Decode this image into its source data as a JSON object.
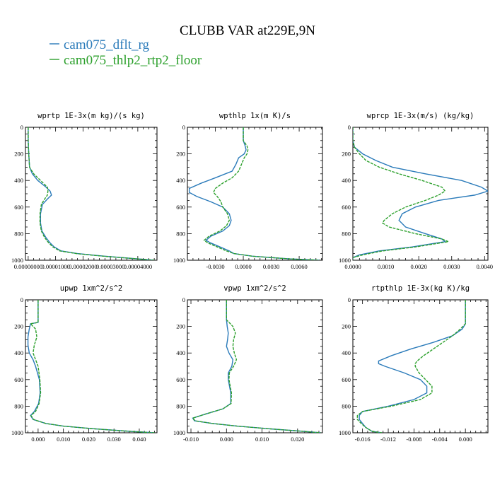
{
  "title": "CLUBB VAR at229E,9N",
  "legend": [
    {
      "label": "cam075_dflt_rg",
      "color": "#2b7bba",
      "dash": false
    },
    {
      "label": "cam075_thlp2_rtp2_floor",
      "color": "#2ca02c",
      "dash": true
    }
  ],
  "chart_data": [
    {
      "type": "line",
      "title": "wprtp   1E-3x(m kg)/(s kg)",
      "xlim": [
        -1e-06,
        4.7e-05
      ],
      "ylim": [
        1000,
        0
      ],
      "xticks": [
        0.0,
        1e-05,
        2e-05,
        3e-05,
        4e-05
      ],
      "xtick_labels": [
        "0.00000000",
        "0.00001000",
        "0.00002000",
        "0.00003000",
        "0.00004000"
      ],
      "yticks": [
        0,
        200,
        400,
        600,
        800,
        1000
      ],
      "ytick_labels": [
        "0",
        "200",
        "400",
        "600",
        "800",
        "1000"
      ],
      "series": [
        {
          "name": "cam075_dflt_rg",
          "p": [
            0,
            100,
            200,
            300,
            350,
            400,
            450,
            480,
            510,
            540,
            580,
            650,
            720,
            780,
            830,
            870,
            900,
            930,
            950,
            970,
            990,
            1000
          ],
          "x": [
            0.0,
            0.0,
            2e-07,
            5e-07,
            1.5e-06,
            3.5e-06,
            6.5e-06,
            8e-06,
            8.5e-06,
            7e-06,
            5.2e-06,
            4.5e-06,
            4.5e-06,
            5e-06,
            6.5e-06,
            8e-06,
            9.5e-06,
            1.2e-05,
            1.8e-05,
            2.8e-05,
            4e-05,
            4.6e-05
          ]
        },
        {
          "name": "cam075_thlp2_rtp2_floor",
          "p": [
            0,
            100,
            200,
            300,
            350,
            400,
            450,
            480,
            510,
            540,
            580,
            650,
            720,
            780,
            830,
            870,
            900,
            930,
            950,
            970,
            990,
            1000
          ],
          "x": [
            0.0,
            0.0,
            2e-07,
            5e-07,
            2e-06,
            4.5e-06,
            7e-06,
            7.2e-06,
            7e-06,
            6e-06,
            4.8e-06,
            4.3e-06,
            4.3e-06,
            4.8e-06,
            6e-06,
            7.5e-06,
            9e-06,
            1.15e-05,
            1.75e-05,
            2.75e-05,
            4e-05,
            4.6e-05
          ]
        }
      ]
    },
    {
      "type": "line",
      "title": "wpthlp   1x(m K)/s",
      "xlim": [
        -0.006,
        0.0085
      ],
      "ylim": [
        1000,
        0
      ],
      "xticks": [
        -0.003,
        0.0,
        0.003,
        0.006
      ],
      "xtick_labels": [
        "-0.0030",
        "0.0000",
        "0.0030",
        "0.0060"
      ],
      "yticks": [
        0,
        200,
        400,
        600,
        800,
        1000
      ],
      "ytick_labels": [
        "0",
        "200",
        "400",
        "600",
        "800",
        "1000"
      ],
      "series": [
        {
          "name": "cam075_dflt_rg",
          "p": [
            0,
            100,
            140,
            170,
            200,
            230,
            280,
            330,
            380,
            420,
            460,
            490,
            520,
            560,
            600,
            650,
            700,
            740,
            780,
            820,
            850,
            870,
            900,
            930,
            950,
            970,
            990,
            1000
          ],
          "x": [
            0.0,
            0.0,
            0.0002,
            0.0003,
            0.0001,
            -0.0005,
            -0.0008,
            -0.0012,
            -0.003,
            -0.0045,
            -0.0058,
            -0.0058,
            -0.005,
            -0.0035,
            -0.0022,
            -0.0015,
            -0.0013,
            -0.0015,
            -0.0022,
            -0.0035,
            -0.004,
            -0.0035,
            -0.0025,
            -0.0015,
            -0.001,
            0.001,
            0.005,
            0.0082
          ]
        },
        {
          "name": "cam075_thlp2_rtp2_floor",
          "p": [
            0,
            100,
            140,
            170,
            200,
            230,
            280,
            330,
            380,
            420,
            460,
            490,
            520,
            560,
            600,
            650,
            700,
            740,
            780,
            820,
            850,
            870,
            900,
            930,
            950,
            970,
            990,
            1000
          ],
          "x": [
            0.0,
            0.0,
            0.0004,
            0.0005,
            0.0004,
            0.0001,
            -0.0002,
            -0.0005,
            -0.0012,
            -0.0022,
            -0.003,
            -0.0032,
            -0.0028,
            -0.0024,
            -0.0022,
            -0.0017,
            -0.0015,
            -0.0018,
            -0.0025,
            -0.0037,
            -0.0042,
            -0.0038,
            -0.0028,
            -0.0018,
            -0.001,
            0.001,
            0.005,
            0.0082
          ]
        }
      ]
    },
    {
      "type": "line",
      "title": "wprcp   1E-3x(m/s) (kg/kg)",
      "xlim": [
        0.0,
        0.0041
      ],
      "ylim": [
        1000,
        0
      ],
      "xticks": [
        0.0,
        0.001,
        0.002,
        0.003,
        0.004
      ],
      "xtick_labels": [
        "0.0000",
        "0.0010",
        "0.0020",
        "0.0030",
        "0.0040"
      ],
      "yticks": [
        0,
        200,
        400,
        600,
        800,
        1000
      ],
      "ytick_labels": [
        "0",
        "200",
        "400",
        "600",
        "800",
        "1000"
      ],
      "series": [
        {
          "name": "cam075_dflt_rg",
          "p": [
            0,
            100,
            150,
            200,
            250,
            300,
            350,
            400,
            450,
            480,
            510,
            550,
            600,
            650,
            700,
            750,
            800,
            840,
            860,
            900,
            930,
            960,
            980,
            1000
          ],
          "x": [
            0.0,
            0.0,
            5e-05,
            0.0003,
            0.0007,
            0.0012,
            0.0022,
            0.0033,
            0.0039,
            0.0041,
            0.0037,
            0.0026,
            0.0019,
            0.0015,
            0.0014,
            0.0016,
            0.0022,
            0.0027,
            0.0028,
            0.0018,
            0.0008,
            0.0002,
            0.0,
            0.0
          ]
        },
        {
          "name": "cam075_thlp2_rtp2_floor",
          "p": [
            0,
            100,
            150,
            200,
            250,
            300,
            350,
            400,
            450,
            480,
            510,
            550,
            600,
            650,
            700,
            720,
            750,
            800,
            840,
            860,
            900,
            930,
            960,
            980,
            1000
          ],
          "x": [
            0.0,
            0.0,
            5e-05,
            0.0002,
            0.0004,
            0.0008,
            0.0014,
            0.0021,
            0.0027,
            0.0028,
            0.0026,
            0.0022,
            0.0016,
            0.0012,
            0.00095,
            0.0009,
            0.0011,
            0.0019,
            0.0027,
            0.0029,
            0.0019,
            0.0009,
            0.0003,
            0.0,
            0.0
          ]
        }
      ]
    },
    {
      "type": "line",
      "title": "upwp   1xm^2/s^2",
      "xlim": [
        -0.005,
        0.047
      ],
      "ylim": [
        1000,
        0
      ],
      "xticks": [
        0.0,
        0.01,
        0.02,
        0.03,
        0.04
      ],
      "xtick_labels": [
        "0.000",
        "0.010",
        "0.020",
        "0.030",
        "0.040"
      ],
      "yticks": [
        0,
        200,
        400,
        600,
        800,
        1000
      ],
      "ytick_labels": [
        "0",
        "200",
        "400",
        "600",
        "800",
        "1000"
      ],
      "series": [
        {
          "name": "cam075_dflt_rg",
          "p": [
            0,
            100,
            170,
            180,
            220,
            280,
            340,
            400,
            450,
            500,
            600,
            700,
            780,
            840,
            870,
            900,
            930,
            950,
            970,
            990,
            1000
          ],
          "x": [
            0.0,
            0.0,
            0.0,
            -0.003,
            -0.0035,
            -0.004,
            -0.004,
            -0.0035,
            -0.002,
            -0.001,
            0.0005,
            0.0008,
            0.0002,
            -0.0015,
            -0.003,
            -0.002,
            0.003,
            0.01,
            0.022,
            0.037,
            0.046
          ]
        },
        {
          "name": "cam075_thlp2_rtp2_floor",
          "p": [
            0,
            100,
            170,
            180,
            220,
            280,
            340,
            400,
            450,
            500,
            600,
            700,
            780,
            840,
            870,
            900,
            930,
            950,
            970,
            990,
            1000
          ],
          "x": [
            0.0,
            0.0,
            0.0,
            -0.003,
            -0.001,
            -0.0005,
            -0.0015,
            -0.002,
            -0.001,
            0.0,
            0.0007,
            0.001,
            0.0004,
            -0.001,
            -0.0028,
            -0.0018,
            0.003,
            0.01,
            0.022,
            0.037,
            0.046
          ]
        }
      ]
    },
    {
      "type": "line",
      "title": "vpwp   1xm^2/s^2",
      "xlim": [
        -0.011,
        0.027
      ],
      "ylim": [
        1000,
        0
      ],
      "xticks": [
        -0.01,
        0.0,
        0.01,
        0.02
      ],
      "xtick_labels": [
        "-0.010",
        "0.000",
        "0.010",
        "0.020"
      ],
      "yticks": [
        0,
        200,
        400,
        600,
        800,
        1000
      ],
      "ytick_labels": [
        "0",
        "200",
        "400",
        "600",
        "800",
        "1000"
      ],
      "series": [
        {
          "name": "cam075_dflt_rg",
          "p": [
            0,
            100,
            150,
            200,
            250,
            300,
            350,
            400,
            450,
            500,
            550,
            600,
            700,
            780,
            820,
            860,
            890,
            910,
            930,
            950,
            970,
            990,
            1000
          ],
          "x": [
            0.0,
            0.0,
            0.0,
            0.0002,
            0.0005,
            0.0003,
            0.0,
            0.0007,
            0.0018,
            0.0015,
            0.0005,
            0.0005,
            0.0012,
            0.0012,
            -0.001,
            -0.006,
            -0.0095,
            -0.009,
            -0.004,
            0.003,
            0.012,
            0.022,
            0.0265
          ]
        },
        {
          "name": "cam075_thlp2_rtp2_floor",
          "p": [
            0,
            100,
            150,
            200,
            250,
            300,
            350,
            400,
            450,
            500,
            550,
            600,
            700,
            780,
            820,
            860,
            890,
            910,
            930,
            950,
            970,
            990,
            1000
          ],
          "x": [
            0.0,
            0.0,
            0.0,
            0.0018,
            0.0025,
            0.002,
            0.0018,
            0.0022,
            0.0028,
            0.002,
            0.0008,
            0.0007,
            0.0014,
            0.0013,
            -0.001,
            -0.006,
            -0.0095,
            -0.0088,
            -0.004,
            0.003,
            0.012,
            0.022,
            0.0265
          ]
        }
      ]
    },
    {
      "type": "line",
      "title": "rtpthlp   1E-3x(kg K)/kg",
      "xlim": [
        -0.0175,
        0.0035
      ],
      "ylim": [
        1000,
        0
      ],
      "xticks": [
        -0.016,
        -0.012,
        -0.008,
        -0.004,
        0.0
      ],
      "xtick_labels": [
        "-0.016",
        "-0.012",
        "-0.008",
        "-0.004",
        "0.000"
      ],
      "yticks": [
        0,
        200,
        400,
        600,
        800,
        1000
      ],
      "ytick_labels": [
        "0",
        "200",
        "400",
        "600",
        "800",
        "1000"
      ],
      "series": [
        {
          "name": "cam075_dflt_rg",
          "p": [
            0,
            100,
            180,
            220,
            270,
            320,
            370,
            420,
            460,
            480,
            500,
            550,
            600,
            650,
            700,
            750,
            800,
            840,
            870,
            900,
            930,
            960,
            990,
            1000
          ],
          "x": [
            0.0,
            0.0,
            0.0,
            -0.0005,
            -0.002,
            -0.005,
            -0.0085,
            -0.0115,
            -0.0135,
            -0.0135,
            -0.0125,
            -0.0095,
            -0.007,
            -0.006,
            -0.006,
            -0.008,
            -0.012,
            -0.016,
            -0.0165,
            -0.0165,
            -0.016,
            -0.0155,
            -0.0145,
            -0.013
          ]
        },
        {
          "name": "cam075_thlp2_rtp2_floor",
          "p": [
            0,
            100,
            180,
            220,
            270,
            320,
            370,
            420,
            460,
            480,
            500,
            550,
            600,
            650,
            700,
            750,
            800,
            840,
            870,
            900,
            930,
            960,
            990,
            1000
          ],
          "x": [
            0.0,
            0.0,
            0.0,
            -0.0008,
            -0.002,
            -0.0035,
            -0.005,
            -0.0065,
            -0.0075,
            -0.0078,
            -0.0078,
            -0.0072,
            -0.0062,
            -0.0052,
            -0.0052,
            -0.007,
            -0.0115,
            -0.016,
            -0.0168,
            -0.0168,
            -0.0162,
            -0.0155,
            -0.0145,
            -0.013
          ]
        }
      ]
    }
  ]
}
